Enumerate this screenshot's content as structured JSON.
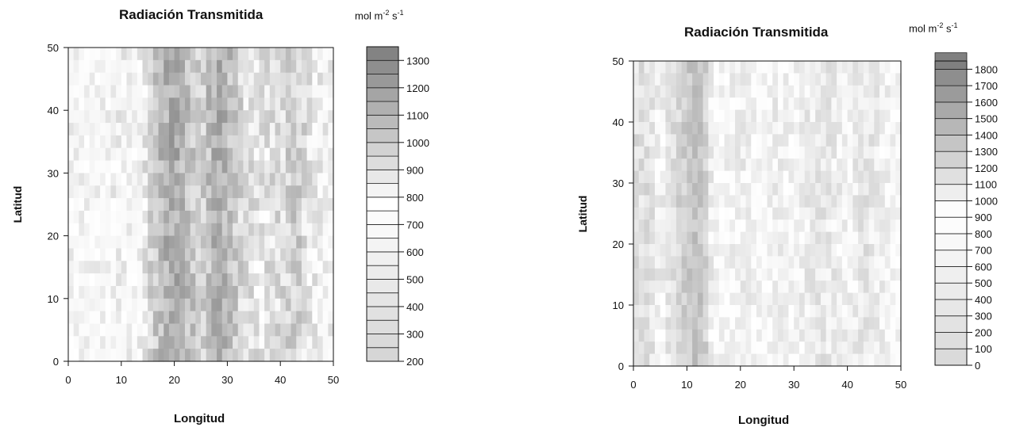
{
  "chart_data": [
    {
      "type": "heatmap",
      "title": "Radiación Transmitida",
      "unit": {
        "base": "mol m",
        "exp1": "-2",
        "s": "s",
        "exp2": "-1"
      },
      "xlabel": "Longitud",
      "ylabel": "Latitud",
      "xlim": [
        0,
        50
      ],
      "ylim": [
        0,
        50
      ],
      "xticks": [
        "0",
        "10",
        "20",
        "30",
        "40",
        "50"
      ],
      "yticks": [
        "0",
        "10",
        "20",
        "30",
        "40",
        "50"
      ],
      "colorbar": {
        "min": 200,
        "max": 1350,
        "step": 50,
        "ticks": [
          "200",
          "300",
          "400",
          "500",
          "600",
          "700",
          "800",
          "900",
          "1000",
          "1100",
          "1200",
          "1300"
        ]
      },
      "column_profile": {
        "x": [
          0,
          5,
          10,
          13,
          16,
          18,
          20,
          22,
          25,
          28,
          30,
          33,
          36,
          40,
          43,
          46,
          50
        ],
        "values": [
          780,
          760,
          820,
          760,
          980,
          1100,
          1150,
          1080,
          950,
          1150,
          1080,
          930,
          880,
          930,
          1000,
          860,
          800
        ]
      },
      "colors": {
        "low": "#d4d4d4",
        "mid": "#ffffff",
        "high": "#7d7d7d"
      }
    },
    {
      "type": "heatmap",
      "title": "Radiación Transmitida",
      "unit": {
        "base": "mol m",
        "exp1": "-2",
        "s": "s",
        "exp2": "-1"
      },
      "xlabel": "Longitud",
      "ylabel": "Latitud",
      "xlim": [
        0,
        50
      ],
      "ylim": [
        0,
        50
      ],
      "xticks": [
        "0",
        "10",
        "20",
        "30",
        "40",
        "50"
      ],
      "yticks": [
        "0",
        "10",
        "20",
        "30",
        "40",
        "50"
      ],
      "colorbar": {
        "min": 0,
        "max": 1850,
        "step": 100,
        "ticks": [
          "0",
          "100",
          "200",
          "300",
          "400",
          "500",
          "600",
          "700",
          "800",
          "900",
          "1000",
          "1100",
          "1200",
          "1300",
          "1400",
          "1500",
          "1600",
          "1700",
          "1800"
        ]
      },
      "column_profile": {
        "x": [
          0,
          3,
          5,
          8,
          11,
          13,
          15,
          18,
          21,
          24,
          27,
          30,
          33,
          36,
          40,
          43,
          46,
          50
        ],
        "values": [
          1150,
          1150,
          1000,
          1200,
          1350,
          1350,
          950,
          1000,
          1050,
          950,
          1050,
          980,
          1080,
          1100,
          1000,
          1120,
          1050,
          950
        ]
      },
      "colors": {
        "low": "#d8d8d8",
        "mid": "#ffffff",
        "high": "#808080"
      }
    }
  ]
}
